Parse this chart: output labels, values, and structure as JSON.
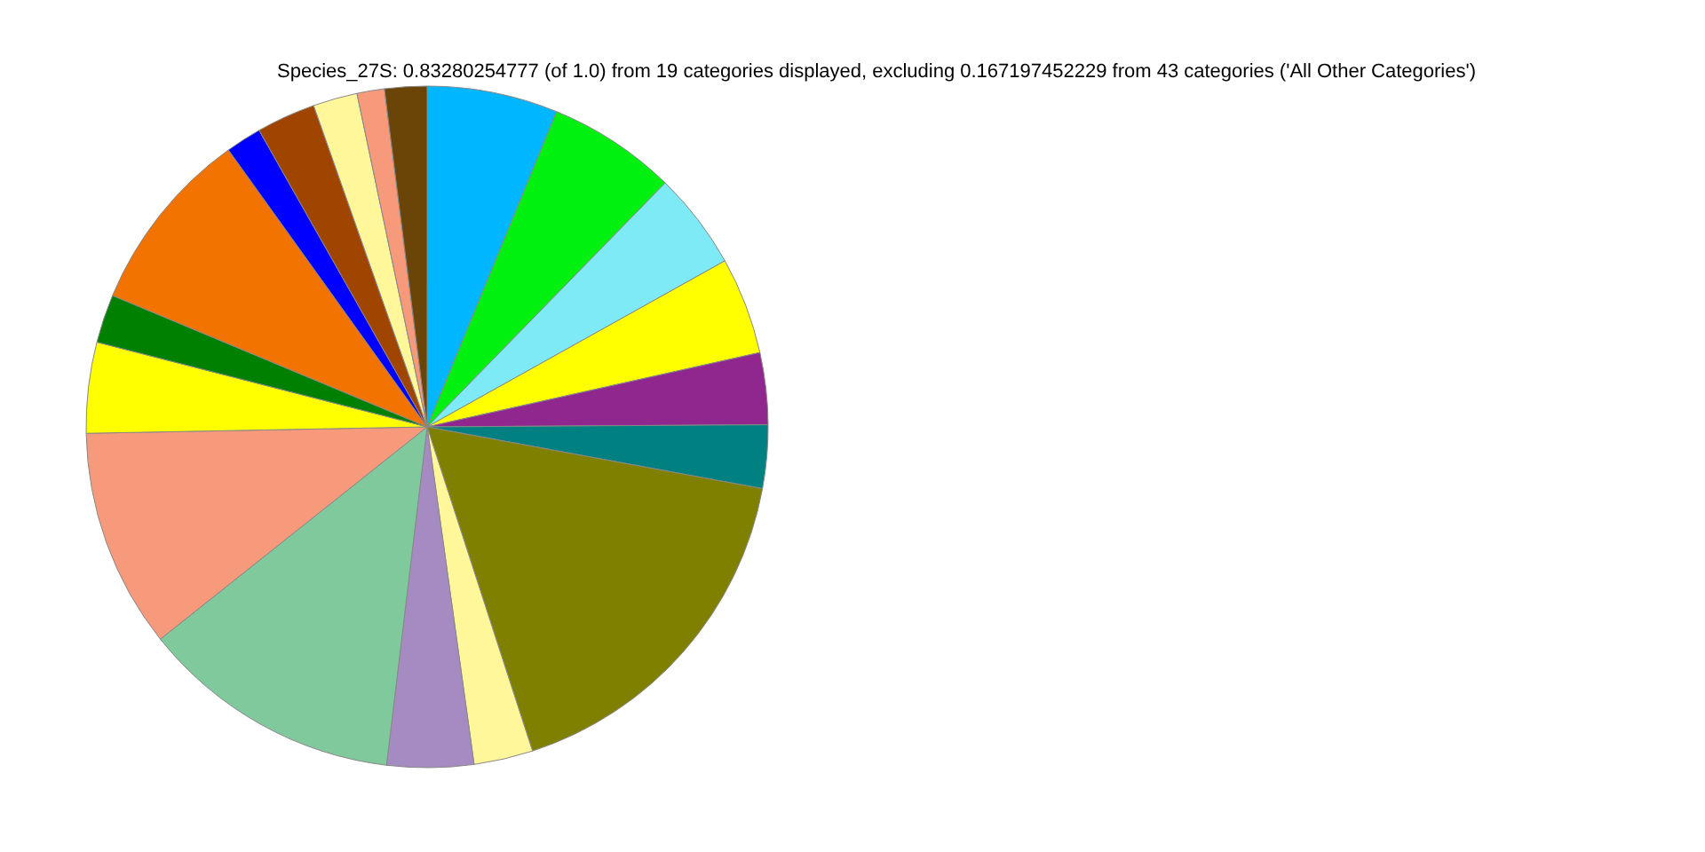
{
  "chart_data": {
    "type": "pie",
    "title": "Species_27S: 0.83280254777 (of 1.0) from 19 categories displayed, excluding 0.167197452229 from 43 categories ('All Other Categories')",
    "categories": [
      null,
      null,
      null,
      null,
      null,
      null,
      null,
      null,
      null,
      null,
      null,
      null,
      null,
      null,
      null,
      null,
      null,
      null,
      null
    ],
    "values": [
      6.2,
      6.1,
      4.6,
      4.6,
      3.4,
      3.0,
      17.1,
      2.8,
      4.1,
      12.4,
      10.4,
      4.3,
      2.3,
      8.8,
      1.7,
      2.8,
      2.1,
      1.3,
      2.0
    ],
    "colors": [
      "#00b7ff",
      "#00f010",
      "#7deaf5",
      "#ffff00",
      "#90278e",
      "#008080",
      "#808000",
      "#fff799",
      "#a58bc2",
      "#80c99c",
      "#f79a7b",
      "#ffff00",
      "#008000",
      "#f27300",
      "#0000ff",
      "#a04500",
      "#fff799",
      "#f79a7b",
      "#6b4508"
    ]
  }
}
